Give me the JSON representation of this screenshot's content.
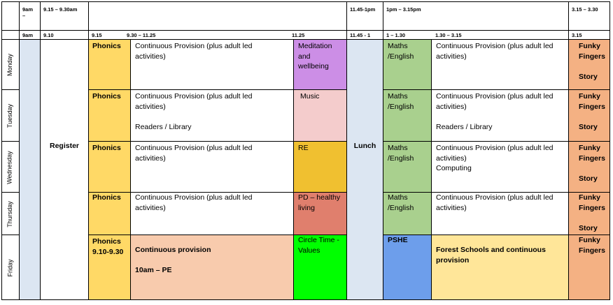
{
  "header_top": {
    "t1": "9am\n–",
    "t2": "9.15 – 9.30am",
    "t3": "11.45-1pm",
    "t4": "1pm – 3.15pm",
    "t5": "3.15 – 3.30"
  },
  "header_sub": {
    "s1": "9am",
    "s2": "9.10",
    "s3": "9.15",
    "s4": "9.30 – 11.25",
    "s5": "11.25",
    "s6": "11.45 - 1",
    "s7": "1 – 1.30",
    "s8": "1.30 – 3.15",
    "s9": "3.15"
  },
  "days": [
    "Monday",
    "Tuesday",
    "Wednesday",
    "Thursday",
    "Friday"
  ],
  "register": "Register",
  "lunch": "Lunch",
  "colors": {
    "light_blue": "#dce6f2",
    "phonics": "#ffd966",
    "maths": "#a9d08e",
    "funky": "#f4b183",
    "meditation": "#cc8ee6",
    "music": "#f4cccc",
    "re": "#f0c030",
    "pd": "#e07f6d",
    "circle": "#00ff00",
    "pshe": "#6d9eeb",
    "friday_cp": "#f8cbad",
    "forest": "#ffe699"
  },
  "rows": [
    {
      "phonics": "Phonics",
      "cp": "Continuous Provision (plus adult led\nactivities)",
      "special": "Meditation\nand\nwellbeing",
      "maths": "Maths\n/English",
      "pm": "Continuous Provision (plus adult led\nactivities)",
      "funky": "Funky\nFingers\n\nStory"
    },
    {
      "phonics": "Phonics",
      "cp": "Continuous Provision (plus adult led\nactivities)\n\nReaders / Library",
      "special": "Music",
      "maths": "Maths\n/English",
      "pm": "Continuous Provision (plus adult led\nactivities)\n\nReaders / Library",
      "funky": "Funky\nFingers\n\nStory"
    },
    {
      "phonics": "Phonics",
      "cp": "Continuous Provision (plus adult led\nactivities)",
      "special": "RE",
      "maths": "Maths\n/English",
      "pm": "Continuous Provision (plus adult led\nactivities)\nComputing",
      "funky": "Funky\nFingers\n\nStory"
    },
    {
      "phonics": "Phonics",
      "cp": "Continuous Provision (plus adult led\nactivities)",
      "special": "PD – healthy\nliving",
      "maths": "Maths\n/English",
      "pm": "Continuous Provision (plus adult led\nactivities)",
      "funky": "Funky\nFingers\n\nStory"
    },
    {
      "phonics": "Phonics\n9.10-9.30",
      "cp": "Continuous provision\n\n10am – PE",
      "special": "Circle Time -\nValues",
      "maths": "PSHE",
      "pm": "Forest Schools and continuous\nprovision",
      "funky": "Funky\nFingers"
    }
  ]
}
